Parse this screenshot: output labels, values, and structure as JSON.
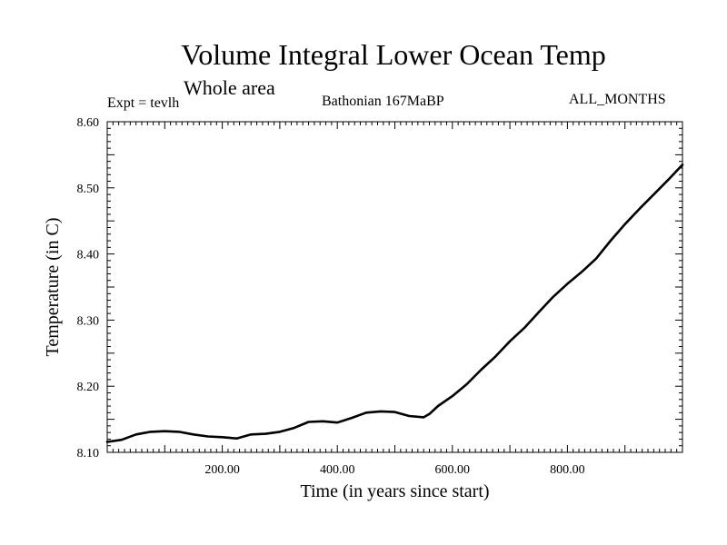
{
  "header": {
    "title": "Volume Integral Lower Ocean Temp",
    "subtitle": "Whole area",
    "expt": "Expt = tevlh",
    "period": "Bathonian 167MaBP",
    "months": "ALL_MONTHS"
  },
  "chart_data": {
    "type": "line",
    "title": "Volume Integral Lower Ocean Temp",
    "xlabel": "Time (in years since start)",
    "ylabel": "Temperature (in C)",
    "xlim": [
      0,
      1000
    ],
    "ylim": [
      8.1,
      8.6
    ],
    "xticks": [
      200,
      400,
      600,
      800
    ],
    "xtick_labels": [
      "200.00",
      "400.00",
      "600.00",
      "800.00"
    ],
    "yticks": [
      8.1,
      8.2,
      8.3,
      8.4,
      8.5,
      8.6
    ],
    "ytick_labels": [
      "8.10",
      "8.20",
      "8.30",
      "8.40",
      "8.50",
      "8.60"
    ],
    "line_color": "#000000",
    "series": [
      {
        "name": "tevlh",
        "x": [
          0,
          25,
          50,
          75,
          100,
          125,
          150,
          175,
          200,
          225,
          250,
          275,
          300,
          325,
          350,
          375,
          400,
          425,
          450,
          475,
          500,
          525,
          550,
          560,
          575,
          600,
          625,
          650,
          675,
          700,
          725,
          750,
          775,
          800,
          825,
          850,
          875,
          900,
          925,
          950,
          975,
          1000
        ],
        "y": [
          8.116,
          8.119,
          8.127,
          8.131,
          8.132,
          8.131,
          8.127,
          8.124,
          8.123,
          8.121,
          8.127,
          8.128,
          8.131,
          8.137,
          8.146,
          8.147,
          8.145,
          8.152,
          8.16,
          8.162,
          8.161,
          8.155,
          8.153,
          8.158,
          8.17,
          8.185,
          8.203,
          8.225,
          8.245,
          8.268,
          8.288,
          8.312,
          8.335,
          8.355,
          8.373,
          8.393,
          8.42,
          8.445,
          8.468,
          8.49,
          8.512,
          8.535
        ]
      }
    ]
  }
}
